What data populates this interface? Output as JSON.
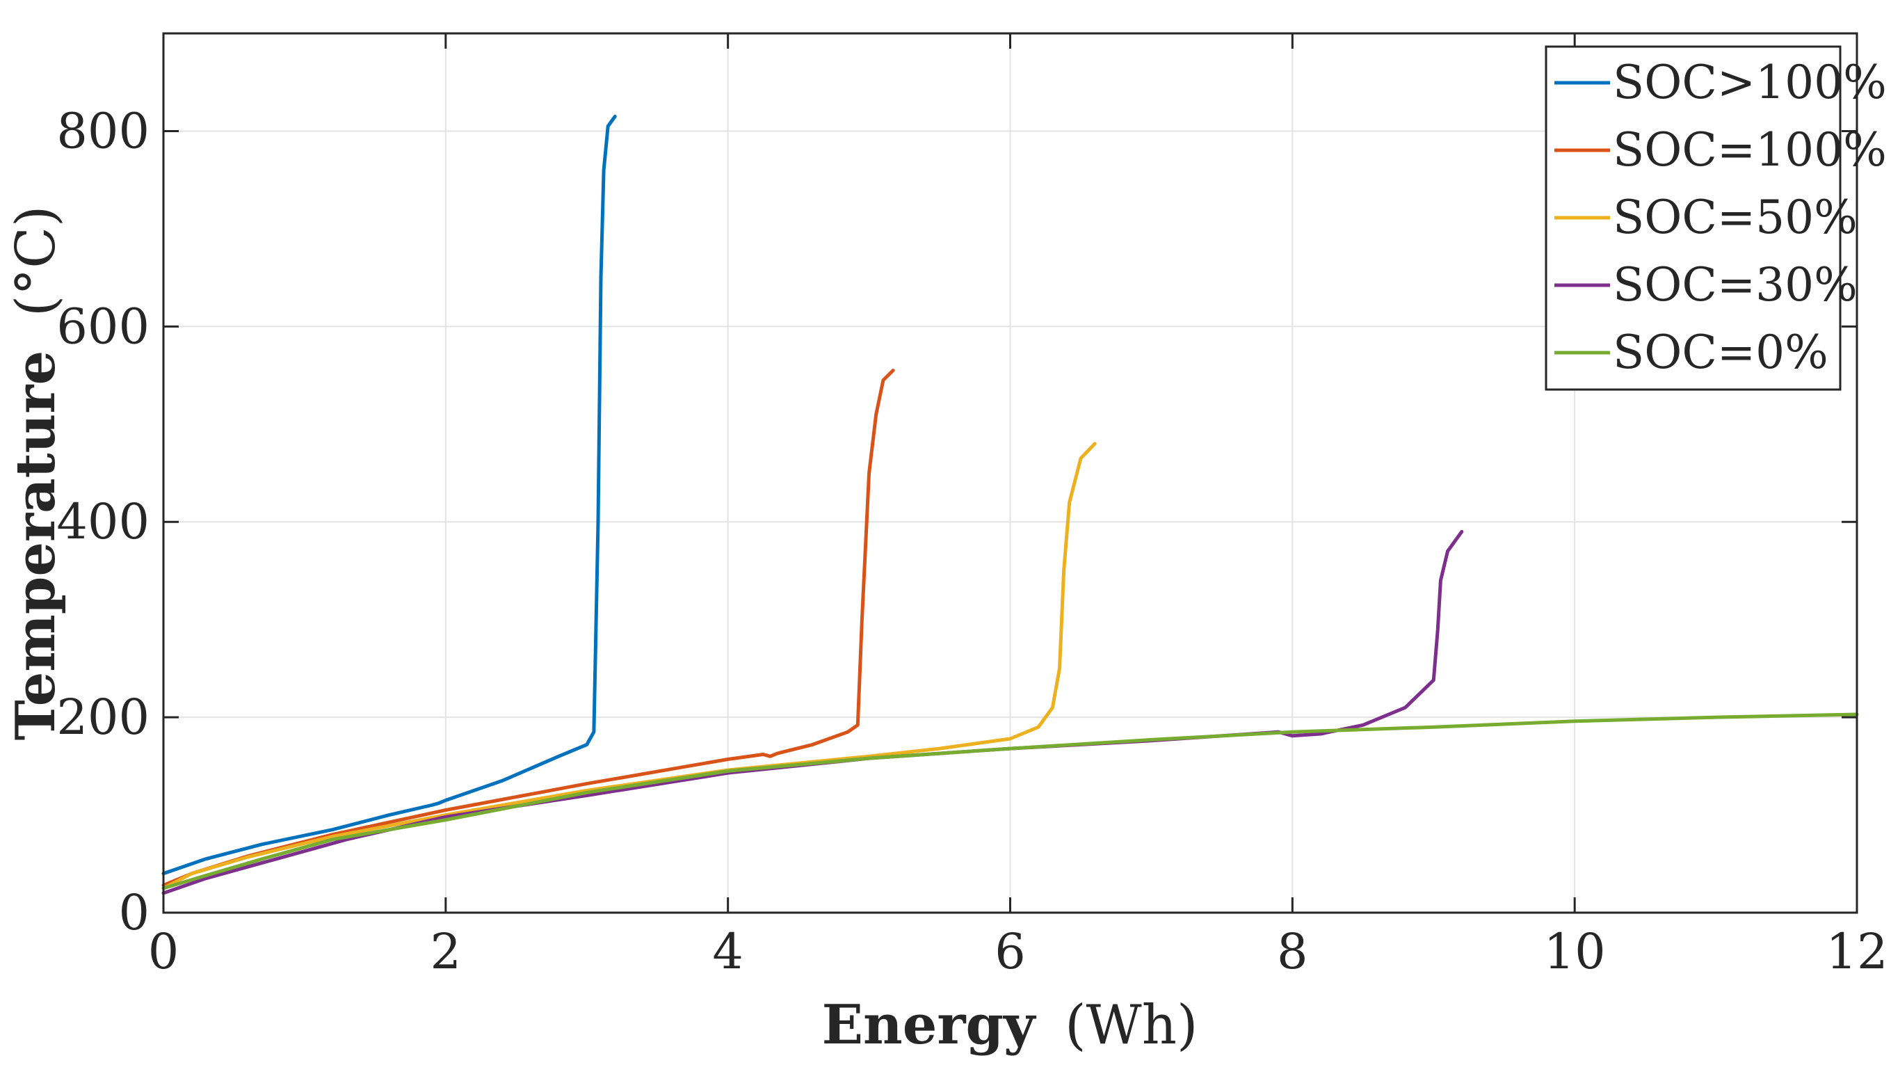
{
  "chart_data": {
    "type": "line",
    "title": "",
    "xlabel_bold": "Energy",
    "xlabel_unit": "(Wh)",
    "ylabel_bold": "Temperature",
    "ylabel_unit": "(°C)",
    "xlim": [
      0,
      12
    ],
    "ylim": [
      0,
      900
    ],
    "xticks": [
      0,
      2,
      4,
      6,
      8,
      10,
      12
    ],
    "yticks": [
      0,
      200,
      400,
      600,
      800
    ],
    "grid": true,
    "legend_position": "top-right",
    "series": [
      {
        "name": "SOC>100%",
        "color": "#0072BD",
        "x": [
          0,
          0.3,
          0.7,
          1.2,
          1.6,
          1.9,
          1.95,
          2.0,
          2.4,
          2.8,
          3.0,
          3.05,
          3.08,
          3.1,
          3.12,
          3.15,
          3.2
        ],
        "y": [
          40,
          55,
          70,
          85,
          100,
          110,
          112,
          115,
          135,
          160,
          172,
          185,
          400,
          650,
          760,
          805,
          815
        ]
      },
      {
        "name": "SOC=100%",
        "color": "#D95319",
        "x": [
          0,
          0.2,
          0.6,
          1.2,
          2.0,
          3.0,
          4.0,
          4.25,
          4.3,
          4.35,
          4.6,
          4.85,
          4.92,
          4.95,
          5.0,
          5.05,
          5.1,
          5.17
        ],
        "y": [
          28,
          40,
          58,
          80,
          105,
          132,
          157,
          162,
          160,
          163,
          172,
          185,
          192,
          300,
          450,
          510,
          545,
          555
        ]
      },
      {
        "name": "SOC=50%",
        "color": "#EDB120",
        "x": [
          0,
          0.2,
          0.6,
          1.2,
          2.0,
          3.0,
          4.0,
          5.0,
          5.5,
          6.0,
          6.2,
          6.3,
          6.35,
          6.38,
          6.42,
          6.5,
          6.6
        ],
        "y": [
          25,
          40,
          57,
          78,
          100,
          125,
          146,
          160,
          168,
          178,
          190,
          210,
          250,
          350,
          420,
          465,
          480
        ]
      },
      {
        "name": "SOC=30%",
        "color": "#7E2F8E",
        "x": [
          0,
          0.3,
          0.8,
          1.3,
          2.0,
          3.0,
          4.0,
          5.0,
          6.0,
          7.0,
          7.9,
          8.0,
          8.2,
          8.5,
          8.8,
          9.0,
          9.03,
          9.05,
          9.1,
          9.2
        ],
        "y": [
          20,
          35,
          55,
          75,
          98,
          120,
          143,
          158,
          168,
          176,
          185,
          181,
          183,
          192,
          210,
          238,
          290,
          340,
          370,
          390
        ]
      },
      {
        "name": "SOC=0%",
        "color": "#77AC30",
        "x": [
          0,
          0.3,
          0.7,
          1.2,
          2.0,
          3.0,
          4.0,
          5.0,
          6.0,
          7.0,
          8.0,
          9.0,
          10.0,
          11.0,
          12.0
        ],
        "y": [
          25,
          38,
          55,
          75,
          95,
          123,
          145,
          158,
          168,
          177,
          185,
          190,
          196,
          200,
          203
        ]
      }
    ]
  }
}
